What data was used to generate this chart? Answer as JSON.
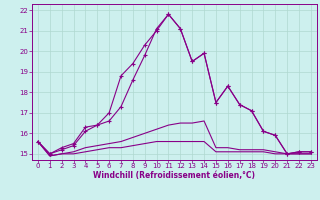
{
  "xlabel": "Windchill (Refroidissement éolien,°C)",
  "xlim": [
    -0.5,
    23.5
  ],
  "ylim": [
    14.7,
    22.3
  ],
  "yticks": [
    15,
    16,
    17,
    18,
    19,
    20,
    21,
    22
  ],
  "xticks": [
    0,
    1,
    2,
    3,
    4,
    5,
    6,
    7,
    8,
    9,
    10,
    11,
    12,
    13,
    14,
    15,
    16,
    17,
    18,
    19,
    20,
    21,
    22,
    23
  ],
  "background_color": "#cdf0ee",
  "grid_color": "#b0d8d0",
  "line_color": "#880088",
  "lines": [
    {
      "x": [
        0,
        1,
        2,
        3,
        4,
        5,
        6,
        7,
        8,
        9,
        10,
        11,
        12,
        13,
        14,
        15,
        16,
        17,
        18,
        19,
        20,
        21,
        22,
        23
      ],
      "y": [
        15.6,
        15.0,
        15.3,
        15.5,
        16.3,
        16.4,
        17.0,
        18.8,
        19.4,
        20.3,
        21.0,
        21.8,
        21.1,
        19.5,
        19.9,
        17.5,
        18.3,
        17.4,
        17.1,
        16.1,
        15.9,
        15.0,
        15.1,
        15.1
      ],
      "marker": true
    },
    {
      "x": [
        0,
        1,
        2,
        3,
        4,
        5,
        6,
        7,
        8,
        9,
        10,
        11,
        12,
        13,
        14,
        15,
        16,
        17,
        18,
        19,
        20,
        21,
        22,
        23
      ],
      "y": [
        15.6,
        15.0,
        15.2,
        15.4,
        16.1,
        16.4,
        16.6,
        17.3,
        18.6,
        19.8,
        21.1,
        21.8,
        21.1,
        19.5,
        19.9,
        17.5,
        18.3,
        17.4,
        17.1,
        16.1,
        15.9,
        15.0,
        15.1,
        15.1
      ],
      "marker": true
    },
    {
      "x": [
        0,
        1,
        2,
        3,
        4,
        5,
        6,
        7,
        8,
        9,
        10,
        11,
        12,
        13,
        14,
        15,
        16,
        17,
        18,
        19,
        20,
        21,
        22,
        23
      ],
      "y": [
        15.6,
        14.9,
        15.0,
        15.1,
        15.3,
        15.4,
        15.5,
        15.6,
        15.8,
        16.0,
        16.2,
        16.4,
        16.5,
        16.5,
        16.6,
        15.3,
        15.3,
        15.2,
        15.2,
        15.2,
        15.1,
        15.0,
        15.0,
        15.0
      ],
      "marker": false
    },
    {
      "x": [
        0,
        1,
        2,
        3,
        4,
        5,
        6,
        7,
        8,
        9,
        10,
        11,
        12,
        13,
        14,
        15,
        16,
        17,
        18,
        19,
        20,
        21,
        22,
        23
      ],
      "y": [
        15.6,
        14.9,
        15.0,
        15.0,
        15.1,
        15.2,
        15.3,
        15.3,
        15.4,
        15.5,
        15.6,
        15.6,
        15.6,
        15.6,
        15.6,
        15.1,
        15.1,
        15.1,
        15.1,
        15.1,
        15.0,
        15.0,
        15.0,
        15.0
      ],
      "marker": false
    }
  ]
}
